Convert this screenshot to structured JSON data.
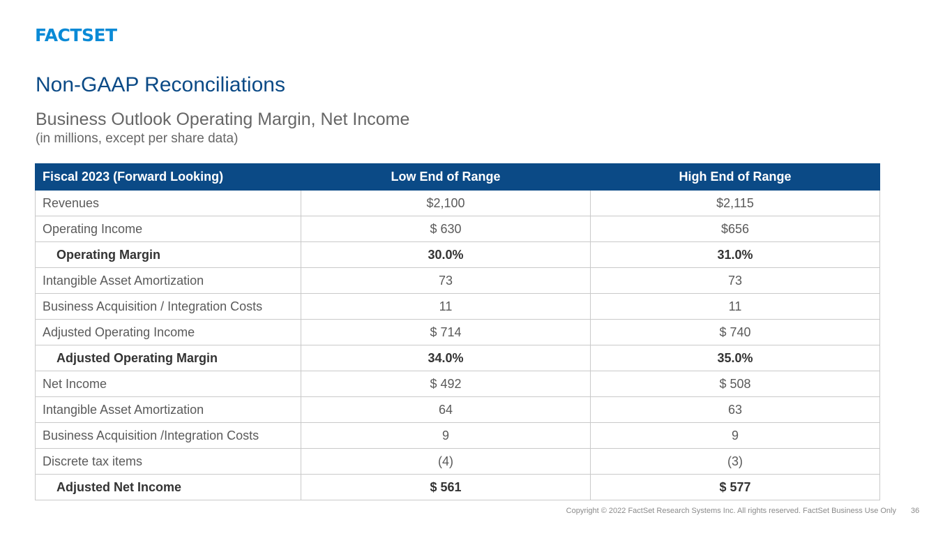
{
  "logo": "FACTSET",
  "title": "Non-GAAP Reconciliations",
  "subtitle": "Business Outlook Operating Margin, Net Income",
  "subnote": "(in millions, except per share data)",
  "table": {
    "headers": [
      "Fiscal 2023 (Forward Looking)",
      "Low End of Range",
      "High End of Range"
    ],
    "rows": [
      {
        "label": "Revenues",
        "low": "$2,100",
        "high": "$2,115",
        "emphasis": false
      },
      {
        "label": "Operating Income",
        "low": "$ 630",
        "high": "$656",
        "emphasis": false
      },
      {
        "label": "Operating Margin",
        "low": "30.0%",
        "high": "31.0%",
        "emphasis": true
      },
      {
        "label": "Intangible Asset Amortization",
        "low": "73",
        "high": "73",
        "emphasis": false
      },
      {
        "label": "Business Acquisition / Integration Costs",
        "low": "11",
        "high": "11",
        "emphasis": false
      },
      {
        "label": "Adjusted Operating Income",
        "low": "$ 714",
        "high": "$ 740",
        "emphasis": false
      },
      {
        "label": "Adjusted Operating Margin",
        "low": "34.0%",
        "high": "35.0%",
        "emphasis": true
      },
      {
        "label": "Net Income",
        "low": "$ 492",
        "high": "$ 508",
        "emphasis": false
      },
      {
        "label": "Intangible Asset Amortization",
        "low": "64",
        "high": "63",
        "emphasis": false
      },
      {
        "label": "Business Acquisition /Integration Costs",
        "low": "9",
        "high": "9",
        "emphasis": false
      },
      {
        "label": "Discrete tax items",
        "low": "(4)",
        "high": "(3)",
        "emphasis": false
      },
      {
        "label": "Adjusted Net Income",
        "low": "$ 561",
        "high": "$ 577",
        "emphasis": true
      }
    ]
  },
  "footer": {
    "copyright": "Copyright © 2022 FactSet Research Systems Inc. All rights reserved. FactSet Business Use Only",
    "page": "36"
  },
  "colors": {
    "brand_blue": "#0a8ad6",
    "header_navy": "#0b4a86"
  }
}
